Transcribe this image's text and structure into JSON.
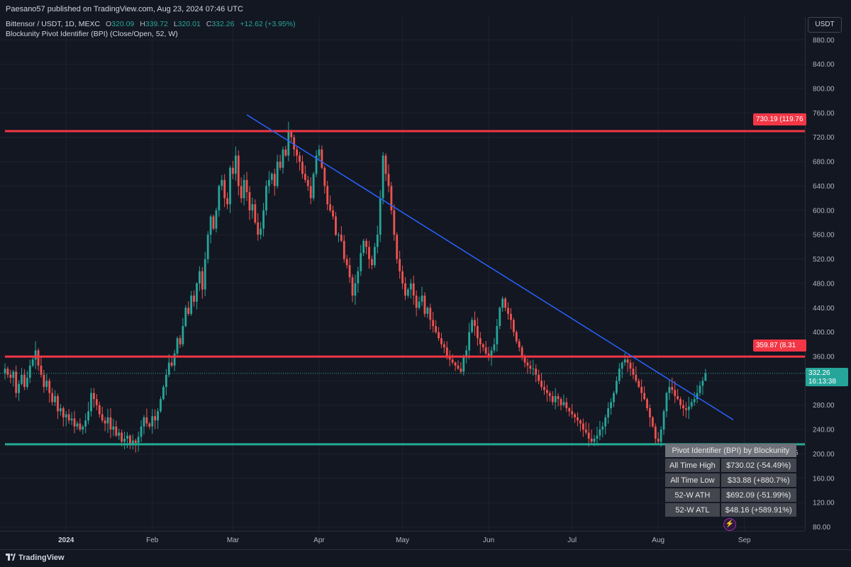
{
  "header": {
    "publisher": "Paesano57 published on TradingView.com, Aug 23, 2024 07:46 UTC"
  },
  "legend": {
    "symbol": "Bittensor / USDT, 1D, MEXC",
    "o_label": "O",
    "o_value": "320.09",
    "h_label": "H",
    "h_value": "339.72",
    "l_label": "L",
    "l_value": "320.01",
    "c_label": "C",
    "c_value": "332.26",
    "change": "+12.62 (+3.95%)",
    "indicator": "Blockunity Pivot Identifier (BPI) (Close/Open, 52, W)"
  },
  "currency": "USDT",
  "colors": {
    "background": "#131722",
    "up": "#26a69a",
    "down": "#ef5350",
    "resistance": "#f23645",
    "support": "#22ab94",
    "trendline": "#2962ff"
  },
  "price_tags": {
    "current_price": "332.26",
    "countdown": "16:13:38",
    "resistance_high": "730.19 (119.76",
    "resistance_low": "359.87 (8.31"
  },
  "table": {
    "title": "Pivot Identifier (BPI) by Blockunity",
    "rows": [
      {
        "label": "All Time High",
        "value": "$730.02 (-54.49%)"
      },
      {
        "label": "All Time Low",
        "value": "$33.88 (+880.7%)"
      },
      {
        "label": "52-W ATH",
        "value": "$692.09 (-51.99%)"
      },
      {
        "label": "52-W ATL",
        "value": "$48.16 (+589.91%)"
      }
    ]
  },
  "footer": {
    "brand": "TradingView"
  },
  "chart_data": {
    "type": "candlestick",
    "y_scale": "linear",
    "ylim": [
      70,
      900
    ],
    "y_ticks": [
      80,
      120,
      160,
      200,
      240,
      280,
      320,
      360,
      400,
      440,
      480,
      520,
      560,
      600,
      640,
      680,
      720,
      760,
      800,
      840,
      880
    ],
    "y_tick_labels": [
      "80.00",
      "120.00",
      "160.00",
      "200.00",
      "240.00",
      "280.00",
      "320.00",
      "360.00",
      "400.00",
      "440.00",
      "480.00",
      "520.00",
      "560.00",
      "600.00",
      "640.00",
      "680.00",
      "720.00",
      "760.00",
      "800.00",
      "840.00",
      "880.00"
    ],
    "x_range": [
      "2023-12-10",
      "2024-09-07"
    ],
    "x_ticks": [
      {
        "date": "2024-01-01",
        "label": "2024",
        "bold": true
      },
      {
        "date": "2024-02-01",
        "label": "Feb"
      },
      {
        "date": "2024-03-01",
        "label": "Mar"
      },
      {
        "date": "2024-04-01",
        "label": "Apr"
      },
      {
        "date": "2024-05-01",
        "label": "May"
      },
      {
        "date": "2024-06-01",
        "label": "Jun"
      },
      {
        "date": "2024-07-01",
        "label": "Jul"
      },
      {
        "date": "2024-08-01",
        "label": "Aug"
      },
      {
        "date": "2024-09-01",
        "label": "Sep"
      }
    ],
    "first_candle_date": "2023-12-10",
    "closes": [
      340,
      330,
      325,
      335,
      300,
      315,
      330,
      310,
      325,
      345,
      355,
      370,
      345,
      330,
      310,
      320,
      300,
      285,
      295,
      270,
      275,
      260,
      265,
      255,
      258,
      245,
      250,
      240,
      245,
      255,
      270,
      300,
      290,
      280,
      265,
      255,
      250,
      260,
      240,
      245,
      230,
      235,
      220,
      225,
      230,
      215,
      222,
      218,
      228,
      245,
      260,
      250,
      245,
      262,
      255,
      270,
      290,
      310,
      330,
      350,
      345,
      365,
      390,
      380,
      410,
      440,
      430,
      460,
      450,
      480,
      500,
      470,
      520,
      560,
      590,
      570,
      600,
      640,
      650,
      620,
      610,
      670,
      660,
      690,
      640,
      620,
      650,
      630,
      600,
      610,
      580,
      560,
      570,
      600,
      640,
      650,
      660,
      640,
      680,
      670,
      700,
      690,
      730,
      720,
      700,
      690,
      680,
      660,
      650,
      640,
      620,
      660,
      690,
      700,
      670,
      640,
      610,
      600,
      590,
      560,
      560,
      550,
      520,
      510,
      490,
      460,
      480,
      500,
      530,
      550,
      540,
      520,
      510,
      540,
      560,
      620,
      690,
      660,
      640,
      600,
      560,
      520,
      500,
      480,
      460,
      470,
      480,
      460,
      440,
      450,
      460,
      430,
      440,
      420,
      410,
      400,
      390,
      380,
      375,
      360,
      355,
      350,
      345,
      340,
      335,
      360,
      370,
      400,
      420,
      410,
      390,
      380,
      375,
      365,
      360,
      370,
      380,
      410,
      440,
      455,
      440,
      430,
      420,
      400,
      385,
      375,
      360,
      350,
      345,
      340,
      340,
      330,
      320,
      310,
      305,
      300,
      295,
      285,
      295,
      290,
      280,
      285,
      275,
      270,
      265,
      260,
      255,
      250,
      240,
      235,
      225,
      220,
      225,
      230,
      240,
      245,
      260,
      275,
      285,
      300,
      320,
      340,
      350,
      355,
      350,
      340,
      330,
      320,
      310,
      300,
      290,
      275,
      260,
      245,
      225,
      220,
      240,
      270,
      300,
      310,
      305,
      295,
      290,
      280,
      275,
      272,
      278,
      285,
      290,
      300,
      312,
      320,
      332
    ],
    "highs": null,
    "last": {
      "open": 320.09,
      "high": 339.72,
      "low": 320.01,
      "close": 332.26
    },
    "horizontal_lines": [
      {
        "name": "resistance-high",
        "price": 730.19
      },
      {
        "name": "resistance-low",
        "price": 359.87
      },
      {
        "name": "support",
        "price": 215.75
      }
    ],
    "trendline": {
      "from": {
        "date": "2024-03-06",
        "price": 757
      },
      "to": {
        "date": "2024-08-28",
        "price": 256
      }
    },
    "visible_price_tag_support_fragment": "215.75"
  }
}
